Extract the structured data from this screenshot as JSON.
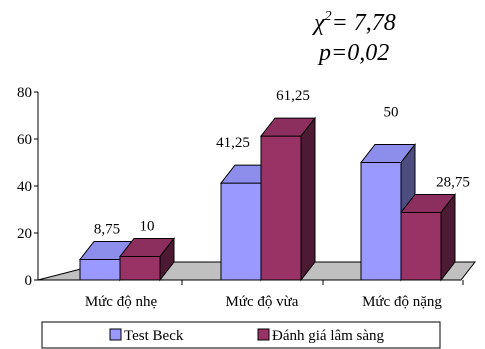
{
  "annotation": {
    "line1_prefix": "χ",
    "line1_sup": "2",
    "line1_rest": "= 7,78",
    "line2": "p=0,02"
  },
  "chart_data": {
    "type": "bar",
    "style": "3d-clustered-column",
    "categories": [
      "Mức độ nhẹ",
      "Mức độ vừa",
      "Mức độ nặng"
    ],
    "series": [
      {
        "name": "Test Beck",
        "values": [
          8.75,
          41.25,
          50
        ],
        "labels": [
          "8,75",
          "41,25",
          "50"
        ],
        "color": "#9999ff"
      },
      {
        "name": "Đánh giá lâm sàng",
        "values": [
          10,
          61.25,
          28.75
        ],
        "labels": [
          "10",
          "61,25",
          "28,75"
        ],
        "color": "#993366"
      }
    ],
    "ylim": [
      0,
      80
    ],
    "yticks": [
      "0",
      "20",
      "40",
      "60",
      "80"
    ],
    "grid": false,
    "legend": "bottom",
    "floor_color": "#c0c0c0"
  }
}
